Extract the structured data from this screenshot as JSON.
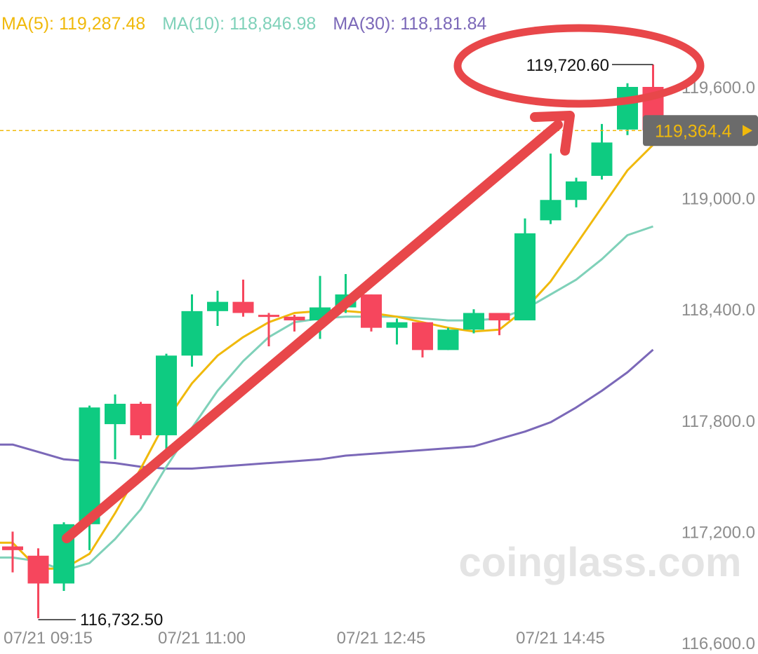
{
  "legend": {
    "ma5": {
      "label": "MA(5): 119,287.48",
      "color": "#f0b90b"
    },
    "ma10": {
      "label": "MA(10): 118,846.98",
      "color": "#7fd1b9"
    },
    "ma30": {
      "label": "MA(30): 118,181.84",
      "color": "#7b68b8"
    }
  },
  "watermark": "coinglass.com",
  "colors": {
    "up": "#0ecb81",
    "down": "#f6465d",
    "annotation": "#e8474a",
    "price_line": "#f0b90b",
    "price_tag_bg": "#6b6b6b",
    "price_tag_text": "#f0b90b"
  },
  "annotations": {
    "high_label": "119,720.60",
    "low_label": "116,732.50",
    "current_price_label": "119,364.4"
  },
  "chart_data": {
    "type": "candlestick",
    "title": "",
    "xlabel": "",
    "ylabel": "",
    "ylim": [
      116600,
      119760
    ],
    "y_ticks": [
      116600,
      117200,
      117800,
      118400,
      119000,
      119600
    ],
    "y_tick_labels": [
      "116,600.0",
      "117,200.0",
      "117,800.0",
      "118,400.0",
      "119,000.0",
      "119,600.0"
    ],
    "x_tick_labels": [
      {
        "index": 1,
        "label": "07/21 09:15"
      },
      {
        "index": 7,
        "label": "07/21 11:00"
      },
      {
        "index": 14,
        "label": "07/21 12:45"
      },
      {
        "index": 21,
        "label": "07/21 14:45"
      }
    ],
    "candles": [
      {
        "o": 117120,
        "h": 117200,
        "l": 116980,
        "c": 117100
      },
      {
        "o": 117070,
        "h": 117110,
        "l": 116732.5,
        "c": 116920
      },
      {
        "o": 116920,
        "h": 117250,
        "l": 116880,
        "c": 117240
      },
      {
        "o": 117240,
        "h": 117880,
        "l": 117100,
        "c": 117870
      },
      {
        "o": 117780,
        "h": 117940,
        "l": 117590,
        "c": 117890
      },
      {
        "o": 117890,
        "h": 117900,
        "l": 117700,
        "c": 117720
      },
      {
        "o": 117720,
        "h": 118160,
        "l": 117640,
        "c": 118150
      },
      {
        "o": 118150,
        "h": 118480,
        "l": 118090,
        "c": 118390
      },
      {
        "o": 118390,
        "h": 118500,
        "l": 118310,
        "c": 118440
      },
      {
        "o": 118440,
        "h": 118560,
        "l": 118360,
        "c": 118380
      },
      {
        "o": 118370,
        "h": 118380,
        "l": 118200,
        "c": 118360
      },
      {
        "o": 118360,
        "h": 118370,
        "l": 118280,
        "c": 118340
      },
      {
        "o": 118340,
        "h": 118580,
        "l": 118240,
        "c": 118410
      },
      {
        "o": 118410,
        "h": 118590,
        "l": 118380,
        "c": 118480
      },
      {
        "o": 118480,
        "h": 118480,
        "l": 118280,
        "c": 118300
      },
      {
        "o": 118300,
        "h": 118350,
        "l": 118210,
        "c": 118330
      },
      {
        "o": 118330,
        "h": 118330,
        "l": 118140,
        "c": 118180
      },
      {
        "o": 118180,
        "h": 118300,
        "l": 118180,
        "c": 118290
      },
      {
        "o": 118290,
        "h": 118400,
        "l": 118270,
        "c": 118380
      },
      {
        "o": 118380,
        "h": 118380,
        "l": 118260,
        "c": 118340
      },
      {
        "o": 118340,
        "h": 118890,
        "l": 118340,
        "c": 118810
      },
      {
        "o": 118880,
        "h": 119240,
        "l": 118860,
        "c": 118990
      },
      {
        "o": 118990,
        "h": 119110,
        "l": 118950,
        "c": 119090
      },
      {
        "o": 119120,
        "h": 119400,
        "l": 119100,
        "c": 119300
      },
      {
        "o": 119370,
        "h": 119620,
        "l": 119340,
        "c": 119600
      },
      {
        "o": 119600,
        "h": 119720.6,
        "l": 119360,
        "c": 119364.4
      }
    ],
    "ma5": [
      117140,
      117000,
      117000,
      117080,
      117300,
      117540,
      117800,
      118000,
      118150,
      118250,
      118330,
      118380,
      118390,
      118390,
      118380,
      118360,
      118330,
      118300,
      118280,
      118290,
      118400,
      118550,
      118750,
      118950,
      119150,
      119287.48
    ],
    "ma10": [
      117060,
      117040,
      116990,
      117030,
      117160,
      117320,
      117550,
      117760,
      117960,
      118120,
      118250,
      118330,
      118350,
      118360,
      118360,
      118360,
      118350,
      118340,
      118340,
      118350,
      118400,
      118480,
      118560,
      118670,
      118800,
      118846.98
    ],
    "ma30": [
      117670,
      117630,
      117590,
      117580,
      117570,
      117550,
      117540,
      117540,
      117550,
      117560,
      117570,
      117580,
      117590,
      117610,
      117620,
      117630,
      117640,
      117650,
      117660,
      117700,
      117740,
      117790,
      117870,
      117960,
      118060,
      118181.84
    ],
    "last_price": 119364.4,
    "high": 119720.6,
    "low": 116732.5,
    "grid": false,
    "legend_position": "top-left"
  }
}
